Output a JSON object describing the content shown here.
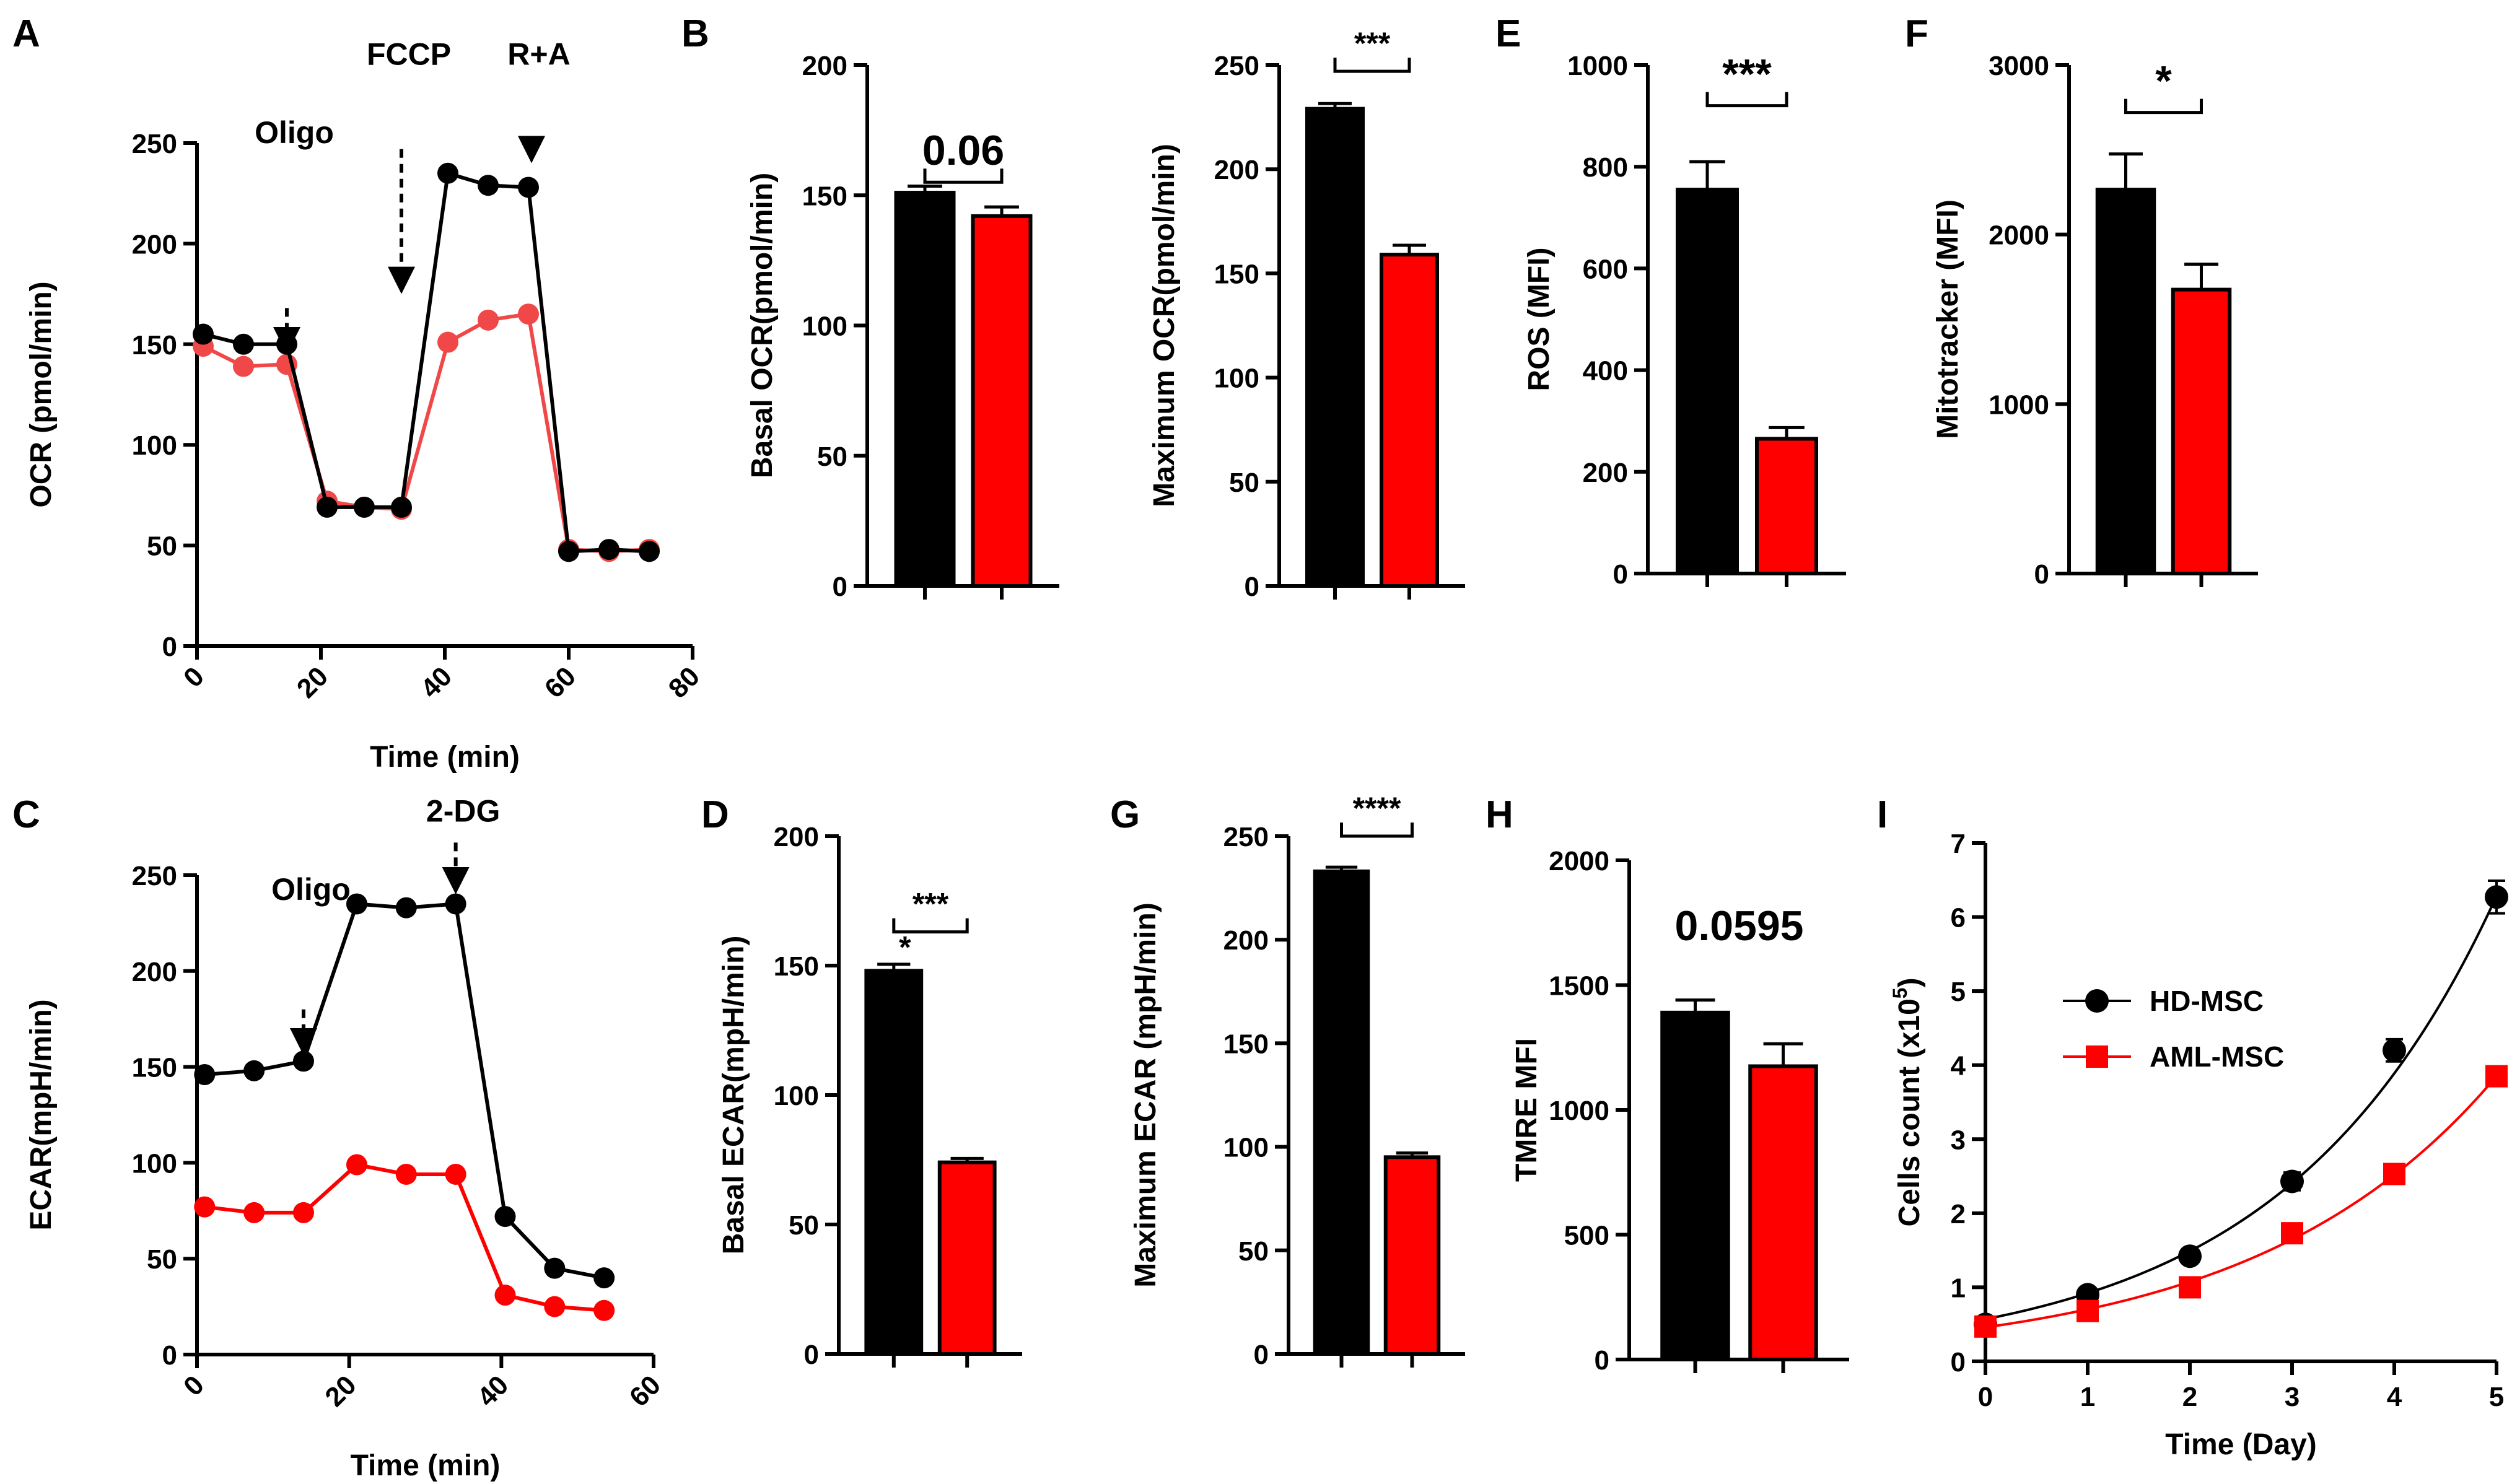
{
  "colors": {
    "hd": "#000000",
    "aml": "#ff0000",
    "aml_line_A": "#f04848"
  },
  "series_names": [
    "HD-MSC",
    "AML-MSC"
  ],
  "chart_data": [
    {
      "id": "A",
      "type": "line",
      "panel_label": "A",
      "xlabel": "Time (min)",
      "ylabel": "OCR (pmol/min)",
      "xlim": [
        0,
        80
      ],
      "ylim": [
        0,
        250
      ],
      "xticks": [
        "0",
        "20",
        "40",
        "60",
        "80"
      ],
      "yticks": [
        "0",
        "50",
        "100",
        "150",
        "200",
        "250"
      ],
      "xticks_rotated": true,
      "annotations": [
        {
          "text": "Oligo",
          "x": 14.5,
          "ytop": 168,
          "ybot": 145,
          "labelY": 250
        },
        {
          "text": "FCCP",
          "x": 33,
          "ytop": 247,
          "ybot": 175,
          "labelY": 289
        },
        {
          "text": "R+A",
          "x": 54,
          "ytop": 247,
          "ybot": 240,
          "labelY": 289
        }
      ],
      "series": [
        {
          "name": "HD-MSC",
          "x": [
            1,
            7.5,
            14.5,
            21,
            27,
            33,
            40.5,
            47,
            53.5,
            60,
            66.5,
            73
          ],
          "y": [
            155,
            150,
            150,
            69,
            69,
            69,
            235,
            229,
            228,
            47,
            48,
            47
          ]
        },
        {
          "name": "AML-MSC",
          "x": [
            1,
            7.5,
            14.5,
            21,
            27,
            33,
            40.5,
            47,
            53.5,
            60,
            66.5,
            73
          ],
          "y": [
            149,
            139,
            140,
            72,
            69,
            68,
            151,
            162,
            165,
            48,
            47,
            48
          ]
        }
      ]
    },
    {
      "id": "B1",
      "type": "bar",
      "panel_label": "B",
      "ylabel": "Basal OCR(pmol/min)",
      "ylim": [
        0,
        200
      ],
      "yticks": [
        "0",
        "50",
        "100",
        "150",
        "200"
      ],
      "categories": [
        "HD-MSC",
        "AML-MSC"
      ],
      "values": [
        151,
        142
      ],
      "errors": [
        2.5,
        3.5
      ],
      "significance": "0.06",
      "sigY": 155
    },
    {
      "id": "B2",
      "type": "bar",
      "panel_label": "",
      "ylabel": "Maximum OCR(pmol/min)",
      "ylim": [
        0,
        250
      ],
      "yticks": [
        "0",
        "50",
        "100",
        "150",
        "200",
        "250"
      ],
      "categories": [
        "HD-MSC",
        "AML-MSC"
      ],
      "values": [
        229,
        159
      ],
      "errors": [
        2.5,
        4.5
      ],
      "significance": "***",
      "sigY": 247
    },
    {
      "id": "E",
      "type": "bar",
      "panel_label": "E",
      "ylabel": "ROS (MFI)",
      "ylim": [
        0,
        1000
      ],
      "yticks": [
        "0",
        "200",
        "400",
        "600",
        "800",
        "1000"
      ],
      "categories": [
        "HD-MSC",
        "AML-MSC"
      ],
      "values": [
        755,
        265
      ],
      "errors": [
        55,
        22
      ],
      "significance": "***",
      "sigY": 920
    },
    {
      "id": "F",
      "type": "bar",
      "panel_label": "F",
      "ylabel": "Mitotracker (MFI)",
      "ylim": [
        0,
        3000
      ],
      "yticks": [
        "0",
        "1000",
        "2000",
        "3000"
      ],
      "categories": [
        "HD-MSC",
        "AML-MSC"
      ],
      "values": [
        2265,
        1675
      ],
      "errors": [
        210,
        150
      ],
      "significance": "*",
      "sigY": 2720
    },
    {
      "id": "C",
      "type": "line",
      "panel_label": "C",
      "xlabel": "Time (min)",
      "ylabel": "ECAR(mpH/min)",
      "xlim": [
        0,
        60
      ],
      "ylim": [
        0,
        250
      ],
      "xticks": [
        "0",
        "20",
        "40",
        "60"
      ],
      "yticks": [
        "0",
        "50",
        "100",
        "150",
        "200",
        "250"
      ],
      "xticks_rotated": true,
      "annotations": [
        {
          "text": "Oligo",
          "x": 14,
          "ytop": 180,
          "ybot": 156,
          "labelY": 237
        },
        {
          "text": "2-DG",
          "x": 34,
          "ytop": 267,
          "ybot": 240,
          "labelY": 278
        }
      ],
      "series": [
        {
          "name": "HD-MSC",
          "x": [
            1,
            7.5,
            14,
            21,
            27.5,
            34,
            40.5,
            47,
            53.5
          ],
          "y": [
            146,
            148,
            153,
            235,
            233,
            235,
            72,
            45,
            40
          ]
        },
        {
          "name": "AML-MSC",
          "x": [
            1,
            7.5,
            14,
            21,
            27.5,
            34,
            40.5,
            47,
            53.5
          ],
          "y": [
            77,
            74,
            74,
            99,
            94,
            94,
            31,
            25,
            23
          ]
        }
      ]
    },
    {
      "id": "D",
      "type": "bar",
      "panel_label": "D",
      "ylabel": "Basal ECAR(mpH/min)",
      "ylim": [
        0,
        200
      ],
      "yticks": [
        "0",
        "50",
        "100",
        "150",
        "200"
      ],
      "categories": [
        "HD-MSC",
        "AML-MSC"
      ],
      "values": [
        148,
        74
      ],
      "errors": [
        2.5,
        1.5
      ],
      "significance": "***",
      "sigY": 163,
      "extra_mark": "*"
    },
    {
      "id": "G",
      "type": "bar",
      "panel_label": "G",
      "ylabel": "Maximum ECAR (mpH/min)",
      "ylim": [
        0,
        250
      ],
      "yticks": [
        "0",
        "50",
        "100",
        "150",
        "200",
        "250"
      ],
      "categories": [
        "HD-MSC",
        "AML-MSC"
      ],
      "values": [
        233,
        95
      ],
      "errors": [
        2,
        2
      ],
      "significance": "****",
      "sigY": 250
    },
    {
      "id": "H",
      "type": "bar",
      "panel_label": "H",
      "ylabel": "TMRE MFI",
      "ylim": [
        0,
        2000
      ],
      "yticks": [
        "0",
        "500",
        "1000",
        "1500",
        "2000"
      ],
      "categories": [
        "HD-MSC",
        "AML-MSC"
      ],
      "values": [
        1390,
        1175
      ],
      "errors": [
        50,
        90
      ],
      "significance": "0.0595",
      "sigY": 1680
    },
    {
      "id": "I",
      "type": "scatter",
      "panel_label": "I",
      "xlabel": "Time (Day)",
      "ylabel": "Cells count (x10",
      "ylabel_sup": "5",
      "ylabel_end": ")",
      "xlim": [
        0,
        5
      ],
      "ylim": [
        0,
        7
      ],
      "xticks": [
        "0",
        "1",
        "2",
        "3",
        "4",
        "5"
      ],
      "yticks": [
        "0",
        "1",
        "2",
        "3",
        "4",
        "5",
        "6",
        "7"
      ],
      "legend": [
        "HD-MSC",
        "AML-MSC"
      ],
      "series": [
        {
          "name": "HD-MSC",
          "marker": "circle",
          "x": [
            0,
            1,
            2,
            3,
            4,
            5
          ],
          "y": [
            0.5,
            0.9,
            1.42,
            2.43,
            4.2,
            6.27
          ],
          "err": [
            0.05,
            0.06,
            0.06,
            0.12,
            0.15,
            0.22
          ],
          "fit_a": 0.57,
          "fit_b": 0.48
        },
        {
          "name": "AML-MSC",
          "marker": "square",
          "x": [
            0,
            1,
            2,
            3,
            4,
            5
          ],
          "y": [
            0.47,
            0.68,
            1.0,
            1.73,
            2.53,
            3.85
          ],
          "err": [
            0.05,
            0.05,
            0.05,
            0.07,
            0.08,
            0.12
          ],
          "fit_a": 0.46,
          "fit_b": 0.425
        }
      ]
    }
  ]
}
